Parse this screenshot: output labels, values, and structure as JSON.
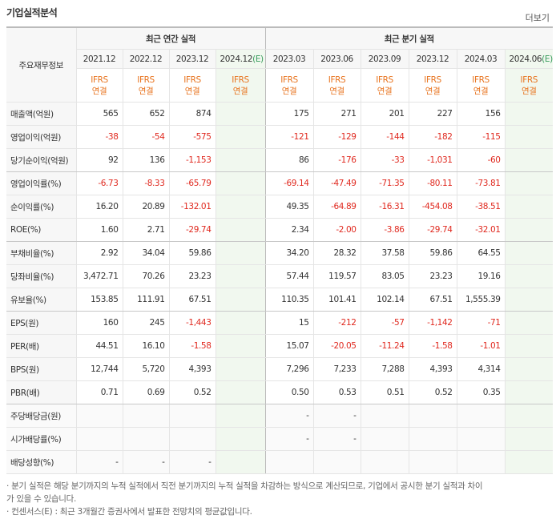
{
  "header": {
    "title": "기업실적분석",
    "more": "더보기"
  },
  "table": {
    "corner": "주요재무정보",
    "groups": [
      "최근 연간 실적",
      "최근 분기 실적"
    ],
    "periods": [
      {
        "period": "2021.12"
      },
      {
        "period": "2022.12"
      },
      {
        "period": "2023.12"
      },
      {
        "period": "2024.12",
        "mark": "(E)"
      },
      {
        "period": "2023.03"
      },
      {
        "period": "2023.06"
      },
      {
        "period": "2023.09"
      },
      {
        "period": "2023.12"
      },
      {
        "period": "2024.03"
      },
      {
        "period": "2024.06",
        "mark": "(E)"
      }
    ],
    "accounting": [
      [
        "IFRS",
        "연결"
      ],
      [
        "IFRS",
        "연결"
      ],
      [
        "IFRS",
        "연결"
      ],
      [
        "IFRS",
        "연결"
      ],
      [
        "IFRS",
        "연결"
      ],
      [
        "IFRS",
        "연결"
      ],
      [
        "IFRS",
        "연결"
      ],
      [
        "IFRS",
        "연결"
      ],
      [
        "IFRS",
        "연결"
      ],
      [
        "IFRS",
        "연결"
      ]
    ],
    "rows": [
      {
        "label": "매출액(억원)",
        "cells": [
          "565",
          "652",
          "874",
          null,
          "175",
          "271",
          "201",
          "227",
          "156",
          null
        ]
      },
      {
        "label": "영업이익(억원)",
        "cells": [
          "-38",
          "-54",
          "-575",
          null,
          "-121",
          "-129",
          "-144",
          "-182",
          "-115",
          null
        ]
      },
      {
        "label": "당기순이익(억원)",
        "cells": [
          "92",
          "136",
          "-1,153",
          null,
          "86",
          "-176",
          "-33",
          "-1,031",
          "-60",
          null
        ]
      },
      {
        "label": "영업이익률(%)",
        "cells": [
          "-6.73",
          "-8.33",
          "-65.79",
          null,
          "-69.14",
          "-47.49",
          "-71.35",
          "-80.11",
          "-73.81",
          null
        ]
      },
      {
        "label": "순이익률(%)",
        "cells": [
          "16.20",
          "20.89",
          "-132.01",
          null,
          "49.35",
          "-64.89",
          "-16.31",
          "-454.08",
          "-38.51",
          null
        ]
      },
      {
        "label": "ROE(%)",
        "cells": [
          "1.60",
          "2.71",
          "-29.74",
          null,
          "2.34",
          "-2.00",
          "-3.86",
          "-29.74",
          "-32.01",
          null
        ]
      },
      {
        "label": "부채비율(%)",
        "cells": [
          "2.92",
          "34.04",
          "59.86",
          null,
          "34.20",
          "28.32",
          "37.58",
          "59.86",
          "64.55",
          null
        ]
      },
      {
        "label": "당좌비율(%)",
        "cells": [
          "3,472.71",
          "70.26",
          "23.23",
          null,
          "57.44",
          "119.57",
          "83.05",
          "23.23",
          "19.16",
          null
        ]
      },
      {
        "label": "유보율(%)",
        "cells": [
          "153.85",
          "111.91",
          "67.51",
          null,
          "110.35",
          "101.41",
          "102.14",
          "67.51",
          "1,555.39",
          null
        ]
      },
      {
        "label": "EPS(원)",
        "cells": [
          "160",
          "245",
          "-1,443",
          null,
          "15",
          "-212",
          "-57",
          "-1,142",
          "-71",
          null
        ]
      },
      {
        "label": "PER(배)",
        "cells": [
          "44.51",
          "16.10",
          "-1.58",
          null,
          "15.07",
          "-20.05",
          "-11.24",
          "-1.58",
          "-1.01",
          null
        ]
      },
      {
        "label": "BPS(원)",
        "cells": [
          "12,744",
          "5,720",
          "4,393",
          null,
          "7,296",
          "7,233",
          "7,288",
          "4,393",
          "4,314",
          null
        ]
      },
      {
        "label": "PBR(배)",
        "cells": [
          "0.71",
          "0.69",
          "0.52",
          null,
          "0.50",
          "0.53",
          "0.51",
          "0.52",
          "0.35",
          null
        ]
      },
      {
        "label": "주당배당금(원)",
        "cells": [
          null,
          null,
          null,
          null,
          "-",
          "-",
          null,
          null,
          null,
          null
        ]
      },
      {
        "label": "시가배당률(%)",
        "cells": [
          null,
          null,
          null,
          null,
          "-",
          "-",
          null,
          null,
          null,
          null
        ]
      },
      {
        "label": "배당성향(%)",
        "cells": [
          "-",
          "-",
          "-",
          null,
          null,
          null,
          null,
          null,
          null,
          null
        ]
      }
    ]
  },
  "notes": [
    "· 분기 실적은 해당 분기까지의 누적 실적에서 직전 분기까지의 누적 실적을 차감하는 방식으로 계산되므로, 기업에서 공시한 분기 실적과 차이가 있을 수 있습니다.",
    "· 컨센서스(E) : 최근 3개월간 증권사에서 발표한 전망치의 평균값입니다."
  ]
}
